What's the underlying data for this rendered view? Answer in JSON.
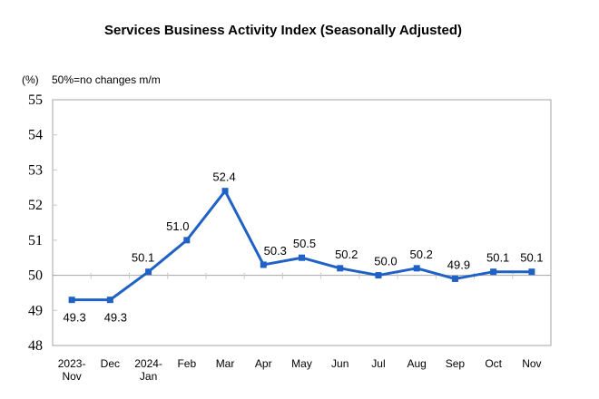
{
  "chart_data": {
    "type": "line",
    "title": "Services Business Activity Index (Seasonally Adjusted)",
    "unit_label": "(%)",
    "note": "50%=no changes m/m",
    "categories": [
      "2023-\nNov",
      "Dec",
      "2024-\nJan",
      "Feb",
      "Mar",
      "Apr",
      "May",
      "Jun",
      "Jul",
      "Aug",
      "Sep",
      "Oct",
      "Nov"
    ],
    "values": [
      49.3,
      49.3,
      50.1,
      51.0,
      52.4,
      50.3,
      50.5,
      50.2,
      50.0,
      50.2,
      49.9,
      50.1,
      50.1
    ],
    "ylim": [
      48,
      55
    ],
    "yticks": [
      48,
      49,
      50,
      51,
      52,
      53,
      54,
      55
    ],
    "baseline_value": 50,
    "grid": "single-gridline-at-50",
    "legend": "none",
    "xlabel": "",
    "ylabel": "(%)",
    "line_color": "#1f61c4",
    "marker_shape": "square",
    "axis_color": "#a6a6a6",
    "tick_color": "#c9c9c9",
    "data_label_color": "#000000",
    "label_positions": [
      "below",
      "below",
      "above",
      "above",
      "above",
      "above",
      "above",
      "above",
      "above",
      "above",
      "above",
      "above",
      "above"
    ],
    "label_dx": [
      3,
      6,
      -6,
      -10,
      -1,
      13,
      3,
      7,
      8,
      5,
      4,
      5,
      0
    ]
  }
}
